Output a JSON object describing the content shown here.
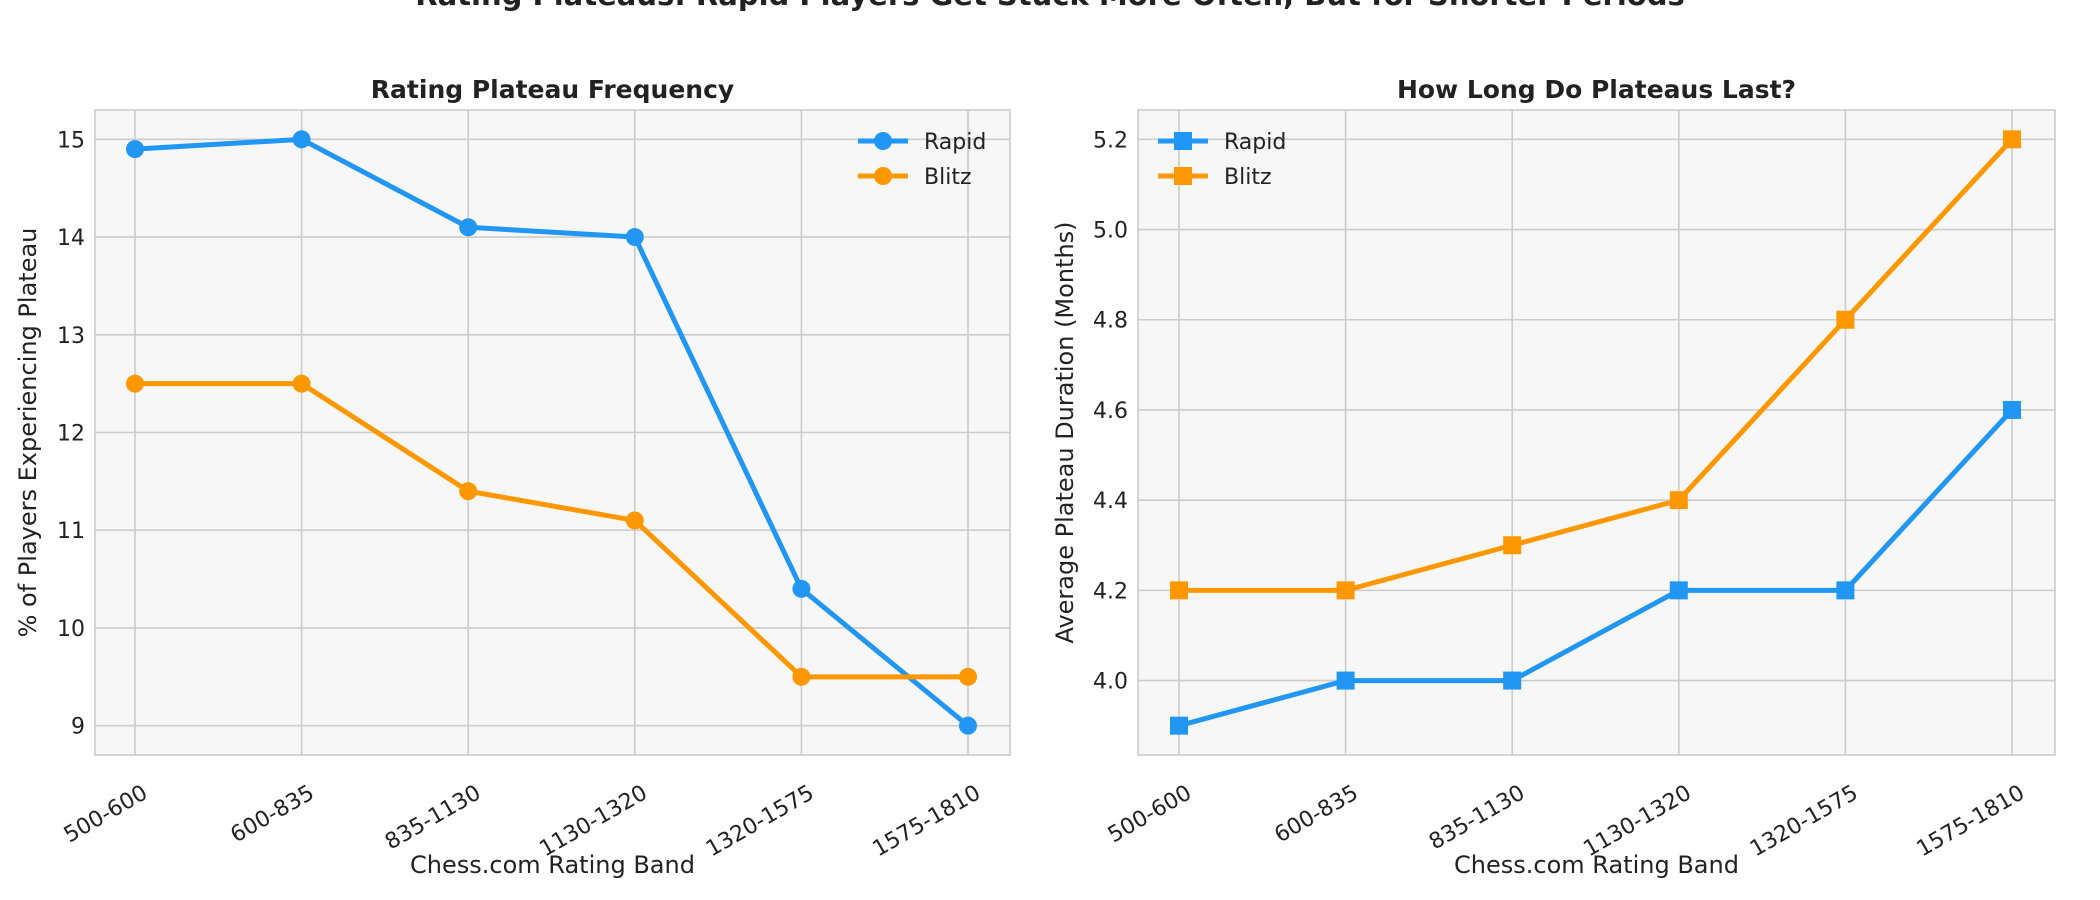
{
  "suptitle": "Rating Plateaus: Rapid Players Get Stuck More Often, But for Shorter Periods",
  "colors": {
    "rapid": "#2196F3",
    "blitz": "#FF9800",
    "panel_bg": "#F7F7F7",
    "grid": "#CCCCCC"
  },
  "chart_data": [
    {
      "type": "line",
      "title": "Rating Plateau Frequency",
      "xlabel": "Chess.com Rating Band",
      "ylabel": "% of Players Experiencing Plateau",
      "categories": [
        "500-600",
        "600-835",
        "835-1130",
        "1130-1320",
        "1320-1575",
        "1575-1810"
      ],
      "yticks": [
        9,
        10,
        11,
        12,
        13,
        14,
        15
      ],
      "ylim": [
        8.7,
        15.3
      ],
      "marker": "circle",
      "legend": "top-right",
      "grid": true,
      "series": [
        {
          "name": "Rapid",
          "color": "#2196F3",
          "values": [
            14.9,
            15.0,
            14.1,
            14.0,
            10.4,
            9.0
          ]
        },
        {
          "name": "Blitz",
          "color": "#FF9800",
          "values": [
            12.5,
            12.5,
            11.4,
            11.1,
            9.5,
            9.5
          ]
        }
      ]
    },
    {
      "type": "line",
      "title": "How Long Do Plateaus Last?",
      "xlabel": "Chess.com Rating Band",
      "ylabel": "Average Plateau Duration (Months)",
      "categories": [
        "500-600",
        "600-835",
        "835-1130",
        "1130-1320",
        "1320-1575",
        "1575-1810"
      ],
      "yticks": [
        "4.0",
        "4.2",
        "4.4",
        "4.6",
        "4.8",
        "5.0",
        "5.2"
      ],
      "ylim": [
        3.835,
        5.265
      ],
      "marker": "square",
      "legend": "top-left",
      "grid": true,
      "series": [
        {
          "name": "Rapid",
          "color": "#2196F3",
          "values": [
            3.9,
            4.0,
            4.0,
            4.2,
            4.2,
            4.6
          ]
        },
        {
          "name": "Blitz",
          "color": "#FF9800",
          "values": [
            4.2,
            4.2,
            4.3,
            4.4,
            4.8,
            5.2
          ]
        }
      ]
    }
  ]
}
